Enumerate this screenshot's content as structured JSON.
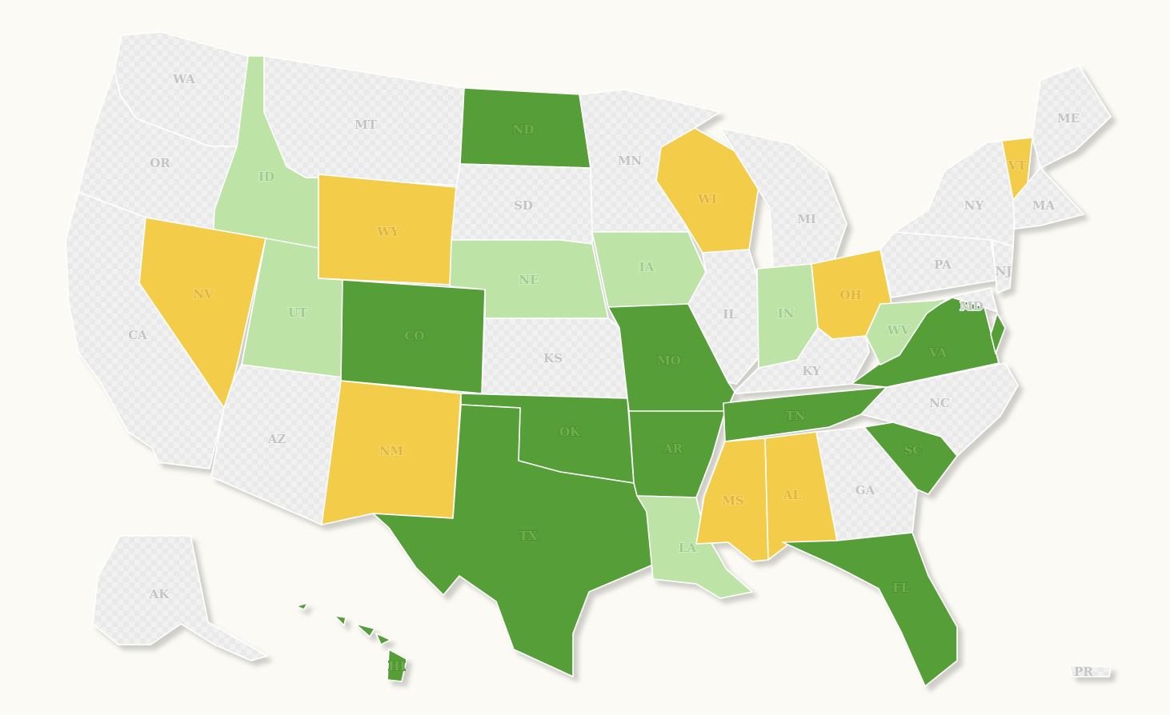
{
  "map": {
    "colors": {
      "dark_green": "#559e37",
      "light_green": "#bde3a7",
      "yellow": "#f3cd48",
      "no_data_a": "#e9e9e9",
      "no_data_b": "#f1f1f1",
      "background": "#fbfaf4",
      "border": "#ffffff"
    },
    "categories": [
      "dark_green",
      "light_green",
      "yellow",
      "none"
    ],
    "states": [
      {
        "abbr": "WA",
        "cat": "none"
      },
      {
        "abbr": "OR",
        "cat": "none"
      },
      {
        "abbr": "CA",
        "cat": "none"
      },
      {
        "abbr": "ID",
        "cat": "light_green"
      },
      {
        "abbr": "NV",
        "cat": "yellow"
      },
      {
        "abbr": "UT",
        "cat": "light_green"
      },
      {
        "abbr": "AZ",
        "cat": "none"
      },
      {
        "abbr": "MT",
        "cat": "none"
      },
      {
        "abbr": "WY",
        "cat": "yellow"
      },
      {
        "abbr": "CO",
        "cat": "dark_green"
      },
      {
        "abbr": "NM",
        "cat": "yellow"
      },
      {
        "abbr": "ND",
        "cat": "dark_green"
      },
      {
        "abbr": "SD",
        "cat": "none"
      },
      {
        "abbr": "NE",
        "cat": "light_green"
      },
      {
        "abbr": "KS",
        "cat": "none"
      },
      {
        "abbr": "OK",
        "cat": "dark_green"
      },
      {
        "abbr": "TX",
        "cat": "dark_green"
      },
      {
        "abbr": "MN",
        "cat": "none"
      },
      {
        "abbr": "IA",
        "cat": "light_green"
      },
      {
        "abbr": "MO",
        "cat": "dark_green"
      },
      {
        "abbr": "AR",
        "cat": "dark_green"
      },
      {
        "abbr": "LA",
        "cat": "light_green"
      },
      {
        "abbr": "WI",
        "cat": "yellow"
      },
      {
        "abbr": "IL",
        "cat": "none"
      },
      {
        "abbr": "MI",
        "cat": "none"
      },
      {
        "abbr": "IN",
        "cat": "light_green"
      },
      {
        "abbr": "OH",
        "cat": "yellow"
      },
      {
        "abbr": "KY",
        "cat": "none"
      },
      {
        "abbr": "TN",
        "cat": "dark_green"
      },
      {
        "abbr": "MS",
        "cat": "yellow"
      },
      {
        "abbr": "AL",
        "cat": "yellow"
      },
      {
        "abbr": "GA",
        "cat": "none"
      },
      {
        "abbr": "FL",
        "cat": "dark_green"
      },
      {
        "abbr": "SC",
        "cat": "dark_green"
      },
      {
        "abbr": "NC",
        "cat": "none"
      },
      {
        "abbr": "VA",
        "cat": "dark_green"
      },
      {
        "abbr": "WV",
        "cat": "light_green"
      },
      {
        "abbr": "PA",
        "cat": "none"
      },
      {
        "abbr": "NY",
        "cat": "none"
      },
      {
        "abbr": "VT",
        "cat": "yellow"
      },
      {
        "abbr": "ME",
        "cat": "none"
      },
      {
        "abbr": "MA",
        "cat": "none"
      },
      {
        "abbr": "NJ",
        "cat": "none"
      },
      {
        "abbr": "MD",
        "cat": "none"
      },
      {
        "abbr": "DE",
        "cat": "dark_green"
      },
      {
        "abbr": "AK",
        "cat": "none"
      },
      {
        "abbr": "HI",
        "cat": "dark_green"
      },
      {
        "abbr": "PR",
        "cat": "none"
      }
    ]
  }
}
